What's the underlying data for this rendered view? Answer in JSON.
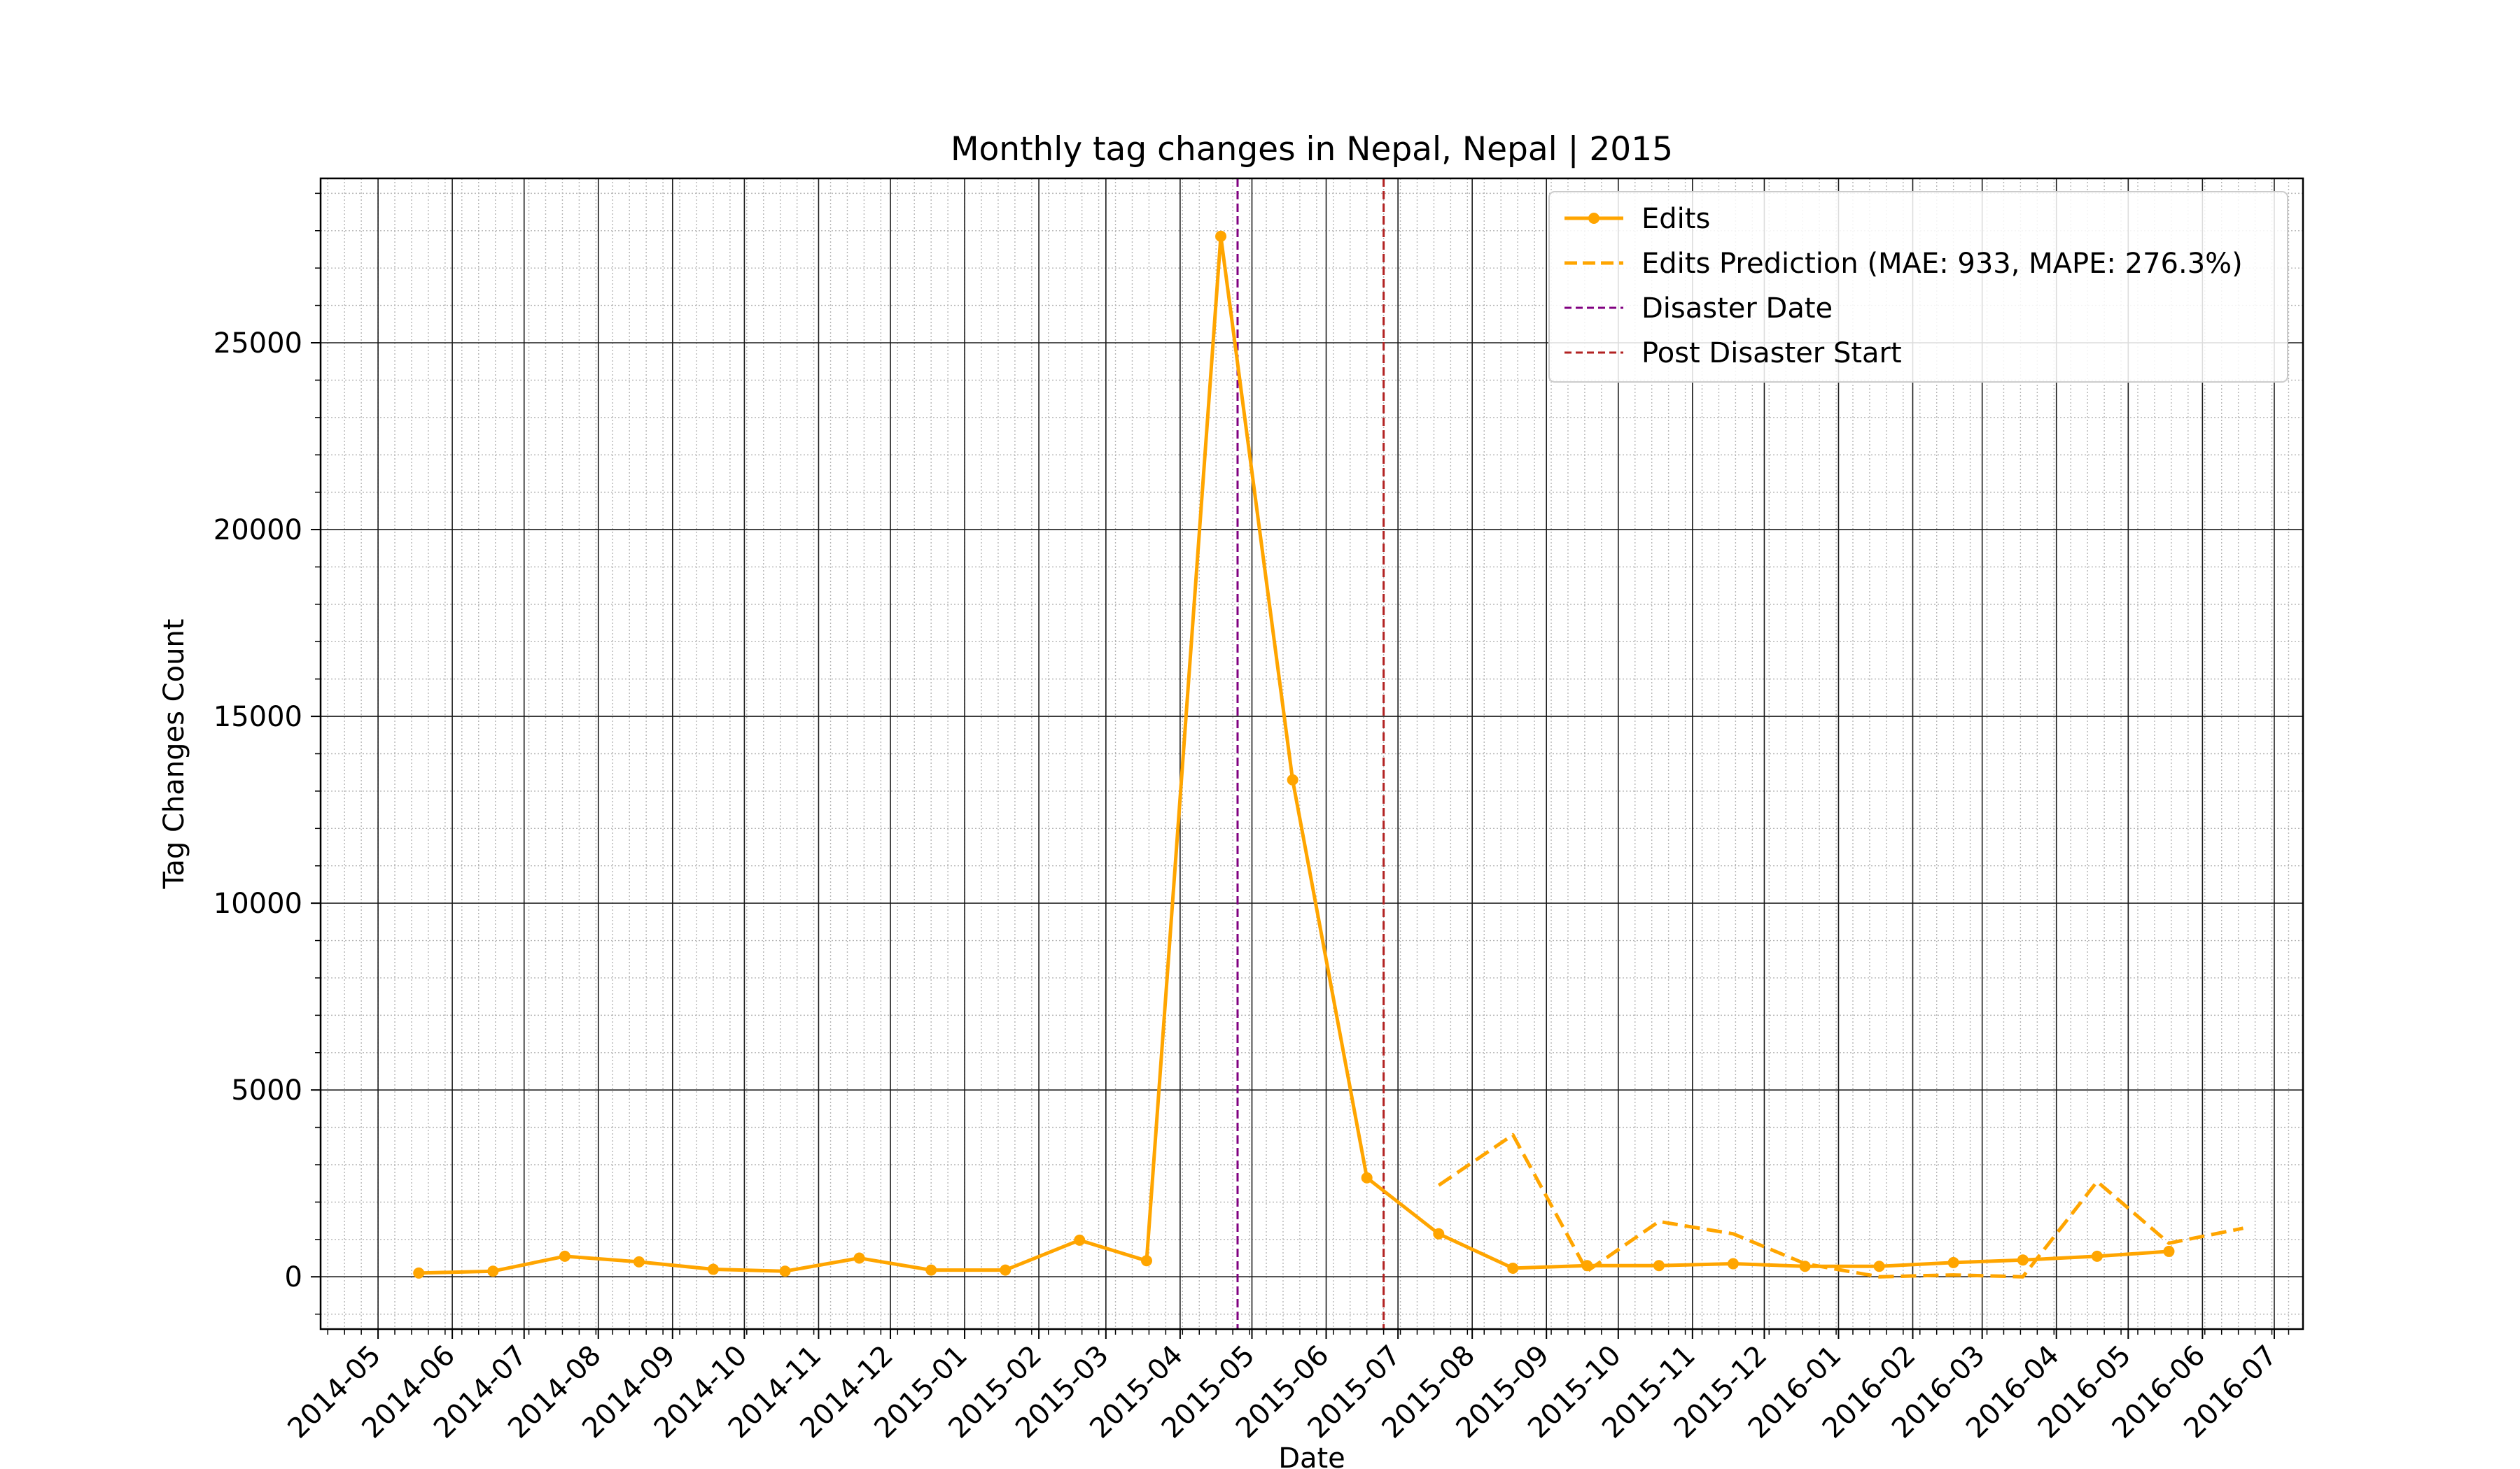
{
  "chart_data": {
    "type": "line",
    "title": "Monthly tag changes in Nepal, Nepal | 2015",
    "xlabel": "Date",
    "ylabel": "Tag Changes Count",
    "x_ticks": [
      "2014-05",
      "2014-06",
      "2014-07",
      "2014-08",
      "2014-09",
      "2014-10",
      "2014-11",
      "2014-12",
      "2015-01",
      "2015-02",
      "2015-03",
      "2015-04",
      "2015-05",
      "2015-06",
      "2015-07",
      "2015-08",
      "2015-09",
      "2015-10",
      "2015-11",
      "2015-12",
      "2016-01",
      "2016-02",
      "2016-03",
      "2016-04",
      "2016-05",
      "2016-06",
      "2016-07"
    ],
    "y_ticks": [
      0,
      5000,
      10000,
      15000,
      20000,
      25000
    ],
    "ylim": [
      -1400,
      29400
    ],
    "xlim": [
      "2014-04-07",
      "2016-07-13"
    ],
    "grid": true,
    "legend_position": "top-right",
    "series": [
      {
        "name": "Edits",
        "style": "solid-marker",
        "color": "#FFA500",
        "points": [
          {
            "x": "2014-05-18",
            "y": 100
          },
          {
            "x": "2014-06-18",
            "y": 150
          },
          {
            "x": "2014-07-18",
            "y": 550
          },
          {
            "x": "2014-08-18",
            "y": 400
          },
          {
            "x": "2014-09-18",
            "y": 200
          },
          {
            "x": "2014-10-18",
            "y": 150
          },
          {
            "x": "2014-11-18",
            "y": 500
          },
          {
            "x": "2014-12-18",
            "y": 180
          },
          {
            "x": "2015-01-18",
            "y": 180
          },
          {
            "x": "2015-02-18",
            "y": 980
          },
          {
            "x": "2015-03-18",
            "y": 430
          },
          {
            "x": "2015-04-18",
            "y": 27850
          },
          {
            "x": "2015-05-18",
            "y": 13300
          },
          {
            "x": "2015-06-18",
            "y": 2650
          },
          {
            "x": "2015-07-18",
            "y": 1150
          },
          {
            "x": "2015-08-18",
            "y": 230
          },
          {
            "x": "2015-09-18",
            "y": 300
          },
          {
            "x": "2015-10-18",
            "y": 300
          },
          {
            "x": "2015-11-18",
            "y": 350
          },
          {
            "x": "2015-12-18",
            "y": 280
          },
          {
            "x": "2016-01-18",
            "y": 280
          },
          {
            "x": "2016-02-18",
            "y": 380
          },
          {
            "x": "2016-03-18",
            "y": 450
          },
          {
            "x": "2016-04-18",
            "y": 550
          },
          {
            "x": "2016-05-18",
            "y": 680
          }
        ]
      },
      {
        "name": "Edits Prediction (MAE: 933, MAPE: 276.3%)",
        "style": "dashed",
        "color": "#FFA500",
        "points": [
          {
            "x": "2015-07-18",
            "y": 2450
          },
          {
            "x": "2015-08-18",
            "y": 3800
          },
          {
            "x": "2015-09-18",
            "y": 150
          },
          {
            "x": "2015-10-18",
            "y": 1480
          },
          {
            "x": "2015-11-18",
            "y": 1150
          },
          {
            "x": "2015-12-18",
            "y": 350
          },
          {
            "x": "2016-01-18",
            "y": 0
          },
          {
            "x": "2016-02-18",
            "y": 50
          },
          {
            "x": "2016-03-18",
            "y": 0
          },
          {
            "x": "2016-04-18",
            "y": 2550
          },
          {
            "x": "2016-05-18",
            "y": 900
          },
          {
            "x": "2016-06-18",
            "y": 1300
          }
        ]
      }
    ],
    "vlines": [
      {
        "name": "Disaster Date",
        "x": "2015-04-25",
        "color": "#800080",
        "style": "dashed"
      },
      {
        "name": "Post Disaster Start",
        "x": "2015-06-25",
        "color": "#B22222",
        "style": "dashed"
      }
    ]
  }
}
